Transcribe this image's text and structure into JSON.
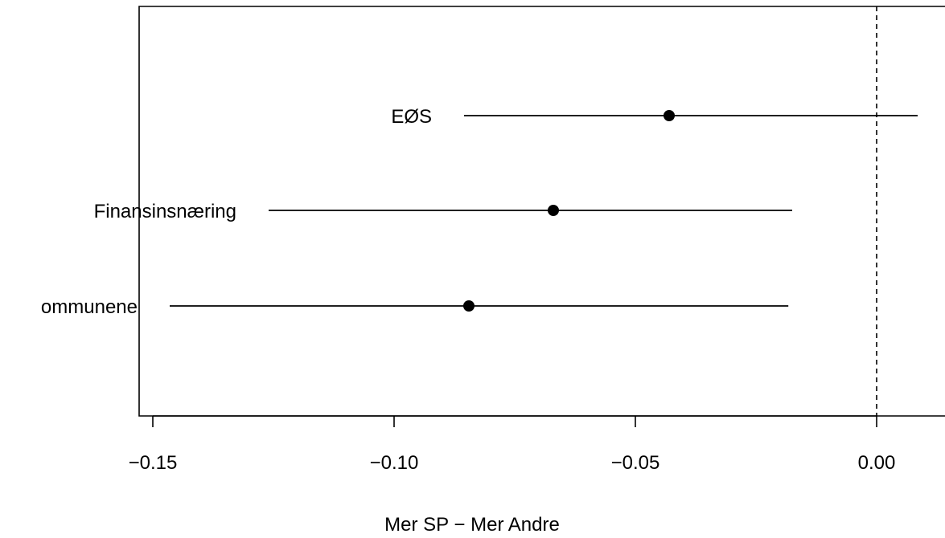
{
  "chart_data": {
    "type": "scatter",
    "subtype": "dot-and-whisker",
    "title": "",
    "xlabel": "Mer SP − Mer Andre",
    "ylabel": "",
    "xlim": [
      -0.1525,
      0.0142
    ],
    "xticks": [
      {
        "value": -0.15,
        "label": "−0.15"
      },
      {
        "value": -0.1,
        "label": "−0.10"
      },
      {
        "value": -0.05,
        "label": "−0.05"
      },
      {
        "value": 0.0,
        "label": "0.00"
      }
    ],
    "reference_line": {
      "x": 0,
      "style": "dashed"
    },
    "points": [
      {
        "label": "EØS",
        "estimate": -0.043,
        "lower": -0.0855,
        "upper": 0.0085
      },
      {
        "label": "Finansinsnæring",
        "estimate": -0.067,
        "lower": -0.126,
        "upper": -0.0175
      },
      {
        "label": "ommunene",
        "estimate": -0.0845,
        "lower": -0.1465,
        "upper": -0.0183
      }
    ],
    "grid": false,
    "legend": "none"
  }
}
